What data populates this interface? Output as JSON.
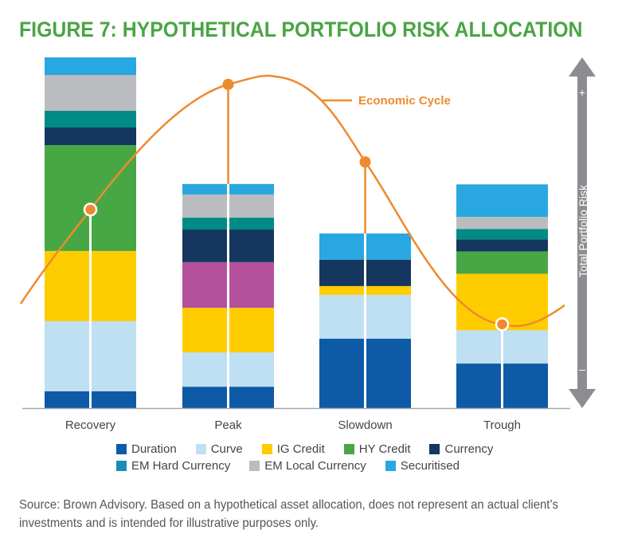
{
  "title": "FIGURE 7: HYPOTHETICAL PORTFOLIO RISK ALLOCATION",
  "source_note": "Source: Brown Advisory. Based on a hypothetical asset allocation, does not represent an actual client’s investments and is intended for illustrative purposes only.",
  "chart_data": {
    "type": "bar",
    "stacked": true,
    "title": "FIGURE 7: HYPOTHETICAL PORTFOLIO RISK ALLOCATION",
    "xlabel": "",
    "ylabel": "Total Portfolio Risk",
    "ylim": [
      0,
      100
    ],
    "y_axis_plus": "+",
    "y_axis_minus": "–",
    "grid": false,
    "legend_position": "bottom",
    "categories": [
      "Recovery",
      "Peak",
      "Slowdown",
      "Trough"
    ],
    "series": [
      {
        "name": "Duration",
        "color": "#0d5aa7",
        "values": [
          4.8,
          6.1,
          19.8,
          12.7
        ]
      },
      {
        "name": "Curve",
        "color": "#bfdff3",
        "values": [
          20.0,
          9.8,
          12.5,
          9.5
        ]
      },
      {
        "name": "IG Credit",
        "color": "#ffcc00",
        "values": [
          20.0,
          12.7,
          2.5,
          16.1
        ]
      },
      {
        "name": "Unlabeled (magenta)",
        "color": "#b5509c",
        "values": [
          0,
          13.0,
          0,
          0
        ]
      },
      {
        "name": "HY Credit",
        "color": "#48a745",
        "values": [
          30.2,
          0,
          0,
          6.4
        ]
      },
      {
        "name": "Currency",
        "color": "#14365f",
        "values": [
          5.0,
          9.3,
          7.5,
          3.4
        ]
      },
      {
        "name": "EM Hard Currency",
        "color": "#008b85",
        "values": [
          4.8,
          3.4,
          0,
          3.0
        ]
      },
      {
        "name": "EM Local Currency",
        "color": "#bbbcc0",
        "values": [
          10.2,
          6.6,
          0,
          3.4
        ]
      },
      {
        "name": "Securitised",
        "color": "#29a7e1",
        "values": [
          5.0,
          3.0,
          7.5,
          9.3
        ]
      }
    ],
    "legend": [
      {
        "name": "Duration",
        "color": "#0d5aa7"
      },
      {
        "name": "Curve",
        "color": "#bfdff3"
      },
      {
        "name": "IG Credit",
        "color": "#ffcc00"
      },
      {
        "name": "HY Credit",
        "color": "#48a745"
      },
      {
        "name": "Currency",
        "color": "#14365f"
      },
      {
        "name": "EM Hard Currency",
        "color": "#1a8db5"
      },
      {
        "name": "EM Local Currency",
        "color": "#bbbcc0"
      },
      {
        "name": "Securitised",
        "color": "#29a7e1"
      }
    ],
    "economic_cycle": {
      "label": "Economic Cycle",
      "color": "#ee8a2e",
      "markers": [
        {
          "category": "Recovery",
          "level": 56.6
        },
        {
          "category": "Peak",
          "level": 92.3
        },
        {
          "category": "Slowdown",
          "level": 70.2
        },
        {
          "category": "Trough",
          "level": 23.9
        }
      ]
    }
  }
}
